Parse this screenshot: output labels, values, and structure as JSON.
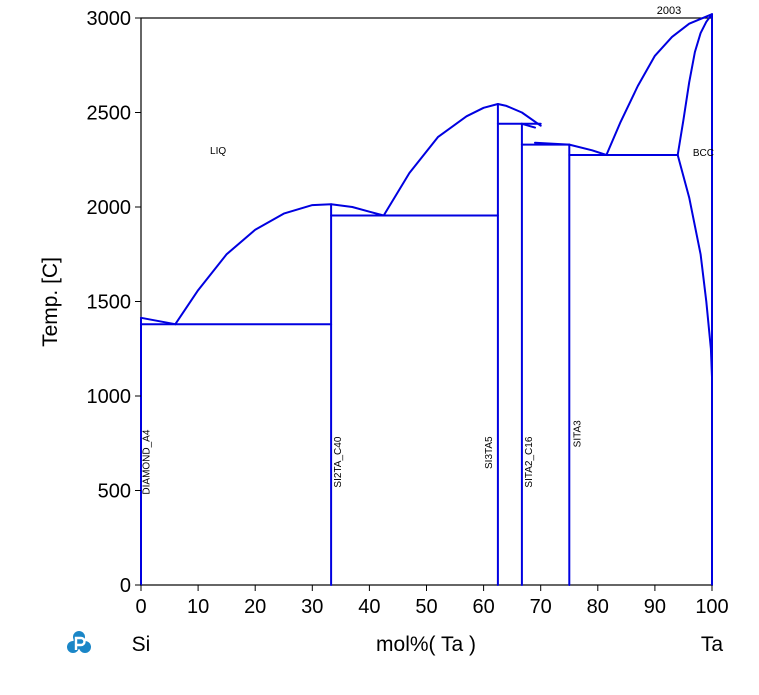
{
  "chart_data": {
    "type": "line",
    "title": "",
    "year_label": "2003",
    "xlabel": "mol%(  Ta  )",
    "ylabel": "Temp.  [C]",
    "left_element": "Si",
    "right_element": "Ta",
    "xlim": [
      0,
      100
    ],
    "ylim": [
      0,
      3000
    ],
    "xticks": [
      0,
      10,
      20,
      30,
      40,
      50,
      60,
      70,
      80,
      90,
      100
    ],
    "yticks": [
      0,
      500,
      1000,
      1500,
      2000,
      2500,
      3000
    ],
    "grid": false,
    "line_color": "#0000e0",
    "region_labels": [
      {
        "text": "LIQ",
        "x": 13.5,
        "y": 2280,
        "rotate": false
      },
      {
        "text": "BCC",
        "x": 98.5,
        "y": 2270,
        "rotate": false
      },
      {
        "text": "DIAMOND_A4",
        "x": 1.5,
        "y": 650,
        "rotate": true
      },
      {
        "text": "SI2TA_C40",
        "x": 35,
        "y": 650,
        "rotate": true
      },
      {
        "text": "SI3TA5",
        "x": 61.5,
        "y": 700,
        "rotate": true
      },
      {
        "text": "SITA2_C16",
        "x": 68.5,
        "y": 650,
        "rotate": true
      },
      {
        "text": "SITA3",
        "x": 77,
        "y": 800,
        "rotate": true
      }
    ],
    "series": [
      {
        "values": [
          [
            0,
            1414
          ],
          [
            6,
            1380
          ]
        ]
      },
      {
        "values": [
          [
            6,
            1380
          ],
          [
            10,
            1560
          ],
          [
            15,
            1750
          ],
          [
            20,
            1880
          ],
          [
            25,
            1965
          ],
          [
            30,
            2010
          ],
          [
            33.3,
            2015
          ],
          [
            37,
            2000
          ],
          [
            40,
            1975
          ],
          [
            42.5,
            1955
          ]
        ]
      },
      {
        "values": [
          [
            42.5,
            1955
          ],
          [
            47,
            2180
          ],
          [
            52,
            2370
          ],
          [
            57,
            2480
          ],
          [
            60,
            2525
          ],
          [
            62.5,
            2545
          ],
          [
            64,
            2535
          ],
          [
            66.7,
            2500
          ],
          [
            70,
            2430
          ]
        ]
      },
      {
        "values": [
          [
            66.7,
            2440
          ],
          [
            69,
            2420
          ]
        ]
      },
      {
        "values": [
          [
            69,
            2340
          ],
          [
            75,
            2330
          ],
          [
            79,
            2300
          ],
          [
            81.5,
            2275
          ]
        ]
      },
      {
        "values": [
          [
            81.5,
            2275
          ],
          [
            84,
            2450
          ],
          [
            87,
            2640
          ],
          [
            90,
            2800
          ],
          [
            93,
            2900
          ],
          [
            96,
            2970
          ],
          [
            100,
            3020
          ]
        ]
      },
      {
        "values": [
          [
            94,
            2275
          ],
          [
            95,
            2460
          ],
          [
            96,
            2660
          ],
          [
            97,
            2820
          ],
          [
            98,
            2920
          ],
          [
            99,
            2980
          ],
          [
            100,
            3020
          ]
        ]
      },
      {
        "values": [
          [
            94,
            2275
          ],
          [
            96,
            2050
          ],
          [
            98,
            1750
          ],
          [
            99,
            1500
          ],
          [
            99.8,
            1250
          ],
          [
            100,
            1100
          ]
        ]
      },
      {
        "values": [
          [
            0,
            1380
          ],
          [
            33.3,
            1380
          ]
        ]
      },
      {
        "values": [
          [
            33.3,
            1955
          ],
          [
            62.5,
            1955
          ]
        ]
      },
      {
        "values": [
          [
            62.5,
            2440
          ],
          [
            70,
            2440
          ]
        ]
      },
      {
        "values": [
          [
            66.7,
            2330
          ],
          [
            75,
            2330
          ]
        ]
      },
      {
        "values": [
          [
            75,
            2275
          ],
          [
            94,
            2275
          ]
        ]
      },
      {
        "values": [
          [
            0,
            0
          ],
          [
            0,
            1414
          ]
        ]
      },
      {
        "values": [
          [
            33.3,
            0
          ],
          [
            33.3,
            2015
          ]
        ]
      },
      {
        "values": [
          [
            62.5,
            0
          ],
          [
            62.5,
            2545
          ]
        ]
      },
      {
        "values": [
          [
            66.7,
            0
          ],
          [
            66.7,
            2440
          ]
        ]
      },
      {
        "values": [
          [
            75,
            0
          ],
          [
            75,
            2330
          ]
        ]
      },
      {
        "values": [
          [
            100,
            0
          ],
          [
            100,
            3020
          ]
        ]
      }
    ]
  }
}
